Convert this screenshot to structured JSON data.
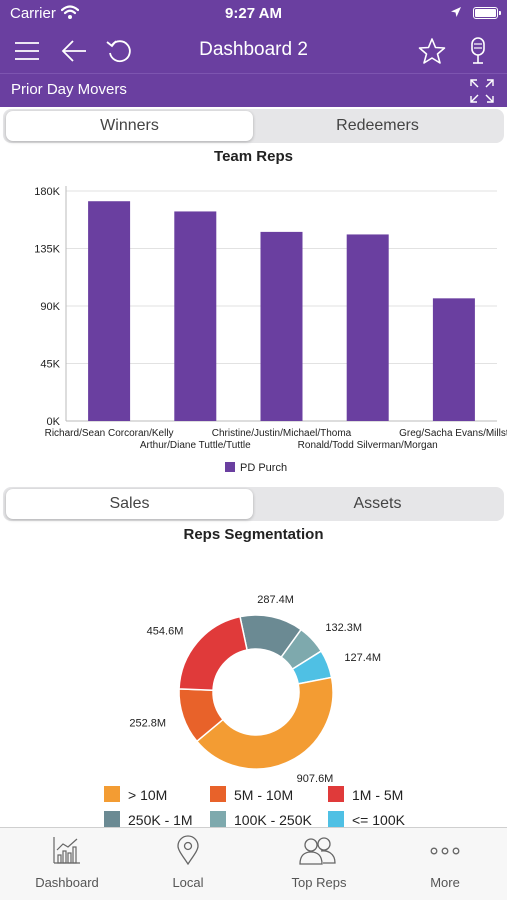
{
  "status_bar": {
    "carrier": "Carrier",
    "time": "9:27 AM"
  },
  "nav": {
    "title": "Dashboard 2"
  },
  "section": {
    "title": "Prior Day Movers"
  },
  "tabs_top": {
    "left": "Winners",
    "right": "Redeemers",
    "active": "left"
  },
  "tabs_bottom": {
    "left": "Sales",
    "right": "Assets",
    "active": "left"
  },
  "colors": {
    "brand": "#6a3fa0",
    "bar": "#6a3fa0"
  },
  "chart_data": [
    {
      "type": "bar",
      "title": "Team Reps",
      "categories": [
        "Richard/Sean Corcoran/Kelly",
        "Arthur/Diane Tuttle/Tuttle",
        "Christine/Justin/Michael/Thoma",
        "Ronald/Todd Silverman/Morgan",
        "Greg/Sacha Evans/Millst"
      ],
      "series": [
        {
          "name": "PD Purch",
          "values": [
            172000,
            164000,
            148000,
            146000,
            96000
          ]
        }
      ],
      "ylim": [
        0,
        180000
      ],
      "yticks": [
        "0K",
        "45K",
        "90K",
        "135K",
        "180K"
      ],
      "xlabel": "",
      "ylabel": "",
      "grid": true,
      "legend": "bottom"
    },
    {
      "type": "pie",
      "title": "Reps Segmentation",
      "labels": [
        "> 10M",
        "5M - 10M",
        "1M - 5M",
        "250K - 1M",
        "100K - 250K",
        "<= 100K"
      ],
      "values": [
        907.6,
        252.8,
        454.6,
        287.4,
        132.3,
        127.4
      ],
      "value_labels": [
        "907.6M",
        "252.8M",
        "454.6M",
        "287.4M",
        "132.3M",
        "127.4M"
      ],
      "colors": [
        "#f39c33",
        "#e8622a",
        "#e03a3a",
        "#6b8a93",
        "#7ea9ad",
        "#4fc0e4"
      ],
      "donut": true,
      "legend": "bottom"
    }
  ],
  "tab_bar": [
    {
      "label": "Dashboard",
      "icon": "dashboard-icon"
    },
    {
      "label": "Local",
      "icon": "location-pin-icon"
    },
    {
      "label": "Top Reps",
      "icon": "people-icon"
    },
    {
      "label": "More",
      "icon": "more-icon"
    }
  ]
}
